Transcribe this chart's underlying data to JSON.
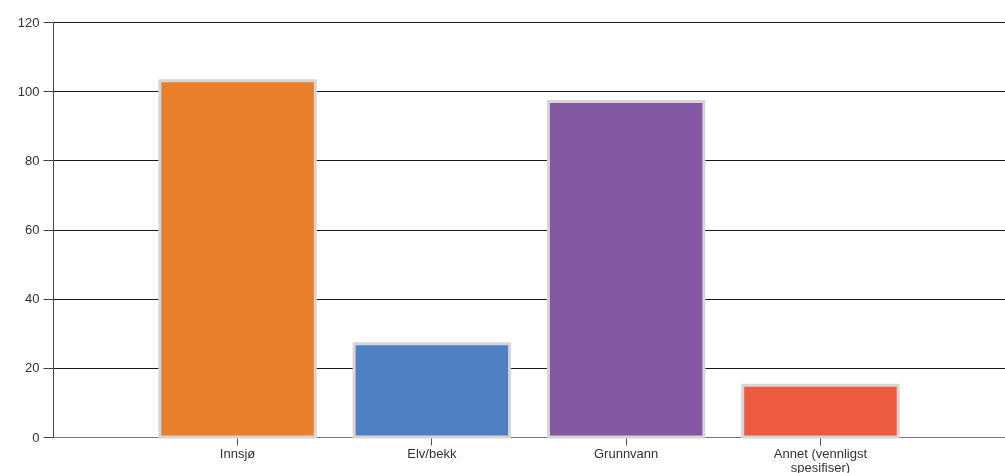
{
  "chart_data": {
    "type": "bar",
    "categories": [
      "Innsjø",
      "Elv/bekk",
      "Grunnvann",
      "Annet (vennligst spesifiser)"
    ],
    "values": [
      103,
      27,
      97,
      15
    ],
    "colors": [
      "#e97f2b",
      "#4f80c3",
      "#8457a1",
      "#ec5a3f"
    ],
    "ylim": [
      0,
      120
    ],
    "yticks": [
      0,
      20,
      40,
      60,
      80,
      100,
      120
    ],
    "grid": "y"
  }
}
